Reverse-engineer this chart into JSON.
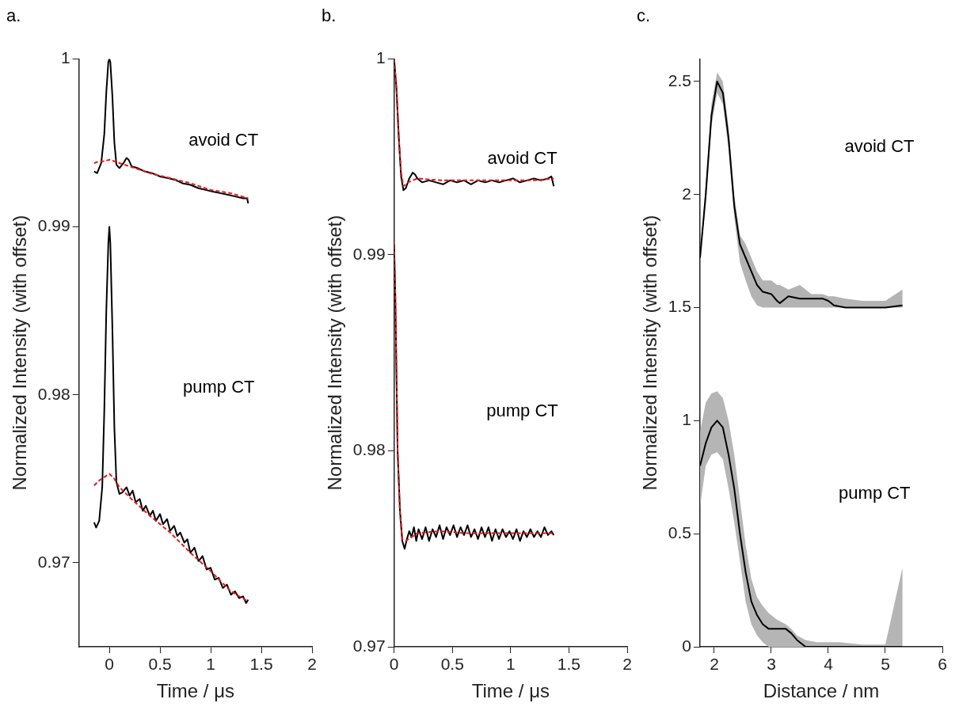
{
  "chart_data": [
    {
      "type": "line",
      "title": "a.",
      "xlabel": "Time / μs",
      "ylabel": "Normalized Intensity (with offset)",
      "xlim": [
        -0.3,
        2
      ],
      "xticks": [
        0,
        0.5,
        1,
        1.5,
        2
      ],
      "ylim": [
        0.965,
        1
      ],
      "yticks": [
        0.97,
        0.98,
        0.99,
        1
      ],
      "grid": false,
      "annotations": [
        "avoid CT",
        "pump CT"
      ],
      "series": [
        {
          "color": "#000000",
          "line_style": "solid",
          "x": [
            -0.15,
            -0.12,
            -0.08,
            -0.05,
            -0.03,
            -0.01,
            0,
            0.01,
            0.03,
            0.05,
            0.07,
            0.1,
            0.14,
            0.17,
            0.19,
            0.22,
            0.28,
            0.35,
            0.42,
            0.5,
            0.58,
            0.65,
            0.72,
            0.8,
            0.88,
            0.95,
            1.02,
            1.1,
            1.18,
            1.25,
            1.32,
            1.36,
            1.37
          ],
          "values": [
            0.9933,
            0.9932,
            0.9938,
            0.9955,
            0.998,
            0.9998,
            1.0,
            0.9998,
            0.9978,
            0.995,
            0.9937,
            0.9935,
            0.9938,
            0.9941,
            0.994,
            0.9936,
            0.9935,
            0.9933,
            0.9932,
            0.993,
            0.9929,
            0.9928,
            0.9926,
            0.9925,
            0.9923,
            0.9922,
            0.9921,
            0.992,
            0.9919,
            0.9918,
            0.9917,
            0.9917,
            0.9914
          ]
        },
        {
          "color": "#e41a1c",
          "line_style": "dashed",
          "x": [
            -0.15,
            -0.1,
            -0.05,
            0,
            0.1,
            0.2,
            0.4,
            0.6,
            0.8,
            1.0,
            1.2,
            1.37
          ],
          "values": [
            0.9938,
            0.9939,
            0.9939,
            0.994,
            0.9938,
            0.9936,
            0.9932,
            0.9929,
            0.9926,
            0.9922,
            0.992,
            0.9917
          ]
        },
        {
          "color": "#000000",
          "line_style": "solid",
          "x": [
            -0.15,
            -0.13,
            -0.1,
            -0.07,
            -0.05,
            -0.03,
            -0.01,
            0,
            0.01,
            0.03,
            0.05,
            0.07,
            0.1,
            0.13,
            0.17,
            0.2,
            0.23,
            0.26,
            0.3,
            0.33,
            0.36,
            0.4,
            0.43,
            0.46,
            0.5,
            0.53,
            0.57,
            0.6,
            0.64,
            0.67,
            0.7,
            0.74,
            0.77,
            0.8,
            0.84,
            0.88,
            0.92,
            0.96,
            1.0,
            1.04,
            1.08,
            1.12,
            1.16,
            1.2,
            1.24,
            1.28,
            1.32,
            1.35,
            1.37
          ],
          "values": [
            0.9724,
            0.9721,
            0.9725,
            0.9745,
            0.979,
            0.985,
            0.989,
            0.99,
            0.989,
            0.984,
            0.978,
            0.9748,
            0.9741,
            0.9742,
            0.9745,
            0.974,
            0.9743,
            0.9736,
            0.9738,
            0.9731,
            0.9734,
            0.9728,
            0.9731,
            0.9725,
            0.9729,
            0.9723,
            0.9726,
            0.9719,
            0.9722,
            0.9716,
            0.9718,
            0.9712,
            0.9714,
            0.9706,
            0.9709,
            0.9701,
            0.9704,
            0.9696,
            0.9697,
            0.969,
            0.9691,
            0.9685,
            0.9687,
            0.9681,
            0.9683,
            0.9679,
            0.968,
            0.9676,
            0.9678
          ]
        },
        {
          "color": "#e41a1c",
          "line_style": "dashed",
          "x": [
            -0.15,
            -0.1,
            -0.05,
            0,
            0.05,
            0.1,
            0.2,
            0.4,
            0.6,
            0.8,
            1.0,
            1.2,
            1.37
          ],
          "values": [
            0.9746,
            0.9749,
            0.9751,
            0.9753,
            0.975,
            0.9745,
            0.9739,
            0.9728,
            0.9718,
            0.9706,
            0.9695,
            0.9683,
            0.9677
          ]
        }
      ]
    },
    {
      "type": "line",
      "title": "b.",
      "xlabel": "Time / μs",
      "ylabel": "Normalized Intensity (with offset)",
      "xlim": [
        0,
        2
      ],
      "xticks": [
        0,
        0.5,
        1,
        1.5,
        2
      ],
      "ylim": [
        0.97,
        1
      ],
      "yticks": [
        0.97,
        0.98,
        0.99,
        1
      ],
      "grid": false,
      "annotations": [
        "avoid CT",
        "pump CT"
      ],
      "series": [
        {
          "color": "#000000",
          "line_style": "solid",
          "x": [
            0,
            0.02,
            0.04,
            0.06,
            0.08,
            0.1,
            0.13,
            0.16,
            0.18,
            0.2,
            0.24,
            0.3,
            0.36,
            0.42,
            0.48,
            0.54,
            0.6,
            0.66,
            0.72,
            0.78,
            0.84,
            0.9,
            0.96,
            1.02,
            1.08,
            1.14,
            1.2,
            1.26,
            1.32,
            1.35,
            1.37
          ],
          "values": [
            1.0,
            0.9985,
            0.996,
            0.994,
            0.9933,
            0.9934,
            0.9939,
            0.9942,
            0.9941,
            0.9939,
            0.9937,
            0.9938,
            0.9937,
            0.9936,
            0.9938,
            0.9937,
            0.9938,
            0.9936,
            0.9938,
            0.9937,
            0.9938,
            0.9937,
            0.9938,
            0.9939,
            0.9937,
            0.9938,
            0.9939,
            0.9938,
            0.9939,
            0.994,
            0.9935
          ]
        },
        {
          "color": "#e41a1c",
          "line_style": "dashed",
          "x": [
            0,
            0.02,
            0.04,
            0.06,
            0.08,
            0.12,
            0.2,
            0.4,
            0.8,
            1.2,
            1.37
          ],
          "values": [
            1.0,
            0.9985,
            0.996,
            0.9942,
            0.9935,
            0.9937,
            0.9939,
            0.9938,
            0.9938,
            0.9938,
            0.9939
          ]
        },
        {
          "color": "#000000",
          "line_style": "solid",
          "x": [
            0,
            0.01,
            0.02,
            0.03,
            0.05,
            0.07,
            0.09,
            0.11,
            0.13,
            0.15,
            0.17,
            0.19,
            0.21,
            0.24,
            0.27,
            0.3,
            0.33,
            0.36,
            0.39,
            0.42,
            0.45,
            0.48,
            0.51,
            0.54,
            0.57,
            0.6,
            0.63,
            0.66,
            0.69,
            0.72,
            0.75,
            0.78,
            0.81,
            0.84,
            0.87,
            0.9,
            0.93,
            0.96,
            0.99,
            1.02,
            1.05,
            1.08,
            1.11,
            1.14,
            1.17,
            1.2,
            1.23,
            1.26,
            1.29,
            1.32,
            1.35,
            1.37
          ],
          "values": [
            0.9905,
            0.988,
            0.984,
            0.98,
            0.977,
            0.9754,
            0.975,
            0.9755,
            0.9759,
            0.9756,
            0.9761,
            0.9754,
            0.976,
            0.9755,
            0.9761,
            0.9754,
            0.976,
            0.9756,
            0.9762,
            0.9755,
            0.9761,
            0.9757,
            0.9762,
            0.9756,
            0.9761,
            0.9757,
            0.9762,
            0.9756,
            0.976,
            0.9755,
            0.9761,
            0.9756,
            0.9761,
            0.9754,
            0.976,
            0.9755,
            0.976,
            0.9756,
            0.9759,
            0.9755,
            0.976,
            0.9754,
            0.9759,
            0.9756,
            0.976,
            0.9756,
            0.9759,
            0.9756,
            0.9761,
            0.9757,
            0.9759,
            0.9757
          ]
        },
        {
          "color": "#e41a1c",
          "line_style": "dashed",
          "x": [
            0,
            0.01,
            0.02,
            0.03,
            0.05,
            0.07,
            0.1,
            0.2,
            0.4,
            0.6,
            0.8,
            1.0,
            1.2,
            1.37
          ],
          "values": [
            0.9905,
            0.988,
            0.984,
            0.98,
            0.9768,
            0.9755,
            0.9754,
            0.9758,
            0.9759,
            0.9758,
            0.9758,
            0.9758,
            0.9758,
            0.9758
          ]
        }
      ]
    },
    {
      "type": "line",
      "title": "c.",
      "xlabel": "Distance / nm",
      "ylabel": "Normalized Intensity (with offset)",
      "xlim": [
        1.75,
        6
      ],
      "xticks": [
        2,
        3,
        4,
        5,
        6
      ],
      "ylim": [
        0,
        2.6
      ],
      "yticks": [
        0,
        0.5,
        1,
        1.5,
        2,
        2.5
      ],
      "grid": false,
      "annotations": [
        "avoid CT",
        "pump CT"
      ],
      "series": [
        {
          "color": "#000000",
          "line_style": "solid",
          "x": [
            1.75,
            1.85,
            1.95,
            2.05,
            2.15,
            2.25,
            2.35,
            2.45,
            2.55,
            2.65,
            2.75,
            2.85,
            3.0,
            3.1,
            3.15,
            3.3,
            3.5,
            3.7,
            3.9,
            4.0,
            4.1,
            4.3,
            4.6,
            5.0,
            5.3
          ],
          "values": [
            1.72,
            2.0,
            2.35,
            2.5,
            2.45,
            2.25,
            1.95,
            1.78,
            1.72,
            1.66,
            1.6,
            1.57,
            1.56,
            1.53,
            1.52,
            1.55,
            1.54,
            1.54,
            1.54,
            1.53,
            1.51,
            1.5,
            1.5,
            1.5,
            1.51
          ],
          "lower": [
            1.72,
            1.95,
            2.3,
            2.45,
            2.4,
            2.2,
            1.9,
            1.7,
            1.62,
            1.55,
            1.51,
            1.5,
            1.5,
            1.5,
            1.5,
            1.5,
            1.5,
            1.5,
            1.5,
            1.5,
            1.5,
            1.5,
            1.5,
            1.5,
            1.5
          ],
          "upper": [
            1.72,
            2.05,
            2.4,
            2.54,
            2.5,
            2.3,
            2.0,
            1.82,
            1.78,
            1.72,
            1.66,
            1.62,
            1.62,
            1.6,
            1.6,
            1.58,
            1.6,
            1.56,
            1.56,
            1.55,
            1.55,
            1.54,
            1.53,
            1.53,
            1.58
          ]
        },
        {
          "color": "#000000",
          "line_style": "solid",
          "x": [
            1.75,
            1.85,
            1.95,
            2.05,
            2.15,
            2.25,
            2.35,
            2.45,
            2.55,
            2.65,
            2.75,
            2.85,
            2.95,
            3.1,
            3.25,
            3.35,
            3.45,
            3.6,
            3.8,
            4.2,
            4.6,
            5.0,
            5.3
          ],
          "values": [
            0.8,
            0.9,
            0.97,
            1.0,
            0.97,
            0.85,
            0.7,
            0.5,
            0.33,
            0.2,
            0.14,
            0.1,
            0.08,
            0.08,
            0.08,
            0.06,
            0.03,
            0,
            0,
            0,
            0,
            0,
            0
          ],
          "lower": [
            0.62,
            0.8,
            0.85,
            0.86,
            0.83,
            0.7,
            0.55,
            0.38,
            0.2,
            0.1,
            0.05,
            0.02,
            0,
            0,
            0,
            0,
            0,
            0,
            0,
            0,
            0,
            0,
            0
          ],
          "upper": [
            0.95,
            1.08,
            1.12,
            1.13,
            1.1,
            1.0,
            0.85,
            0.65,
            0.45,
            0.3,
            0.22,
            0.18,
            0.15,
            0.12,
            0.1,
            0.08,
            0.05,
            0.03,
            0.02,
            0.02,
            0.01,
            0.01,
            0.35
          ]
        }
      ]
    }
  ]
}
